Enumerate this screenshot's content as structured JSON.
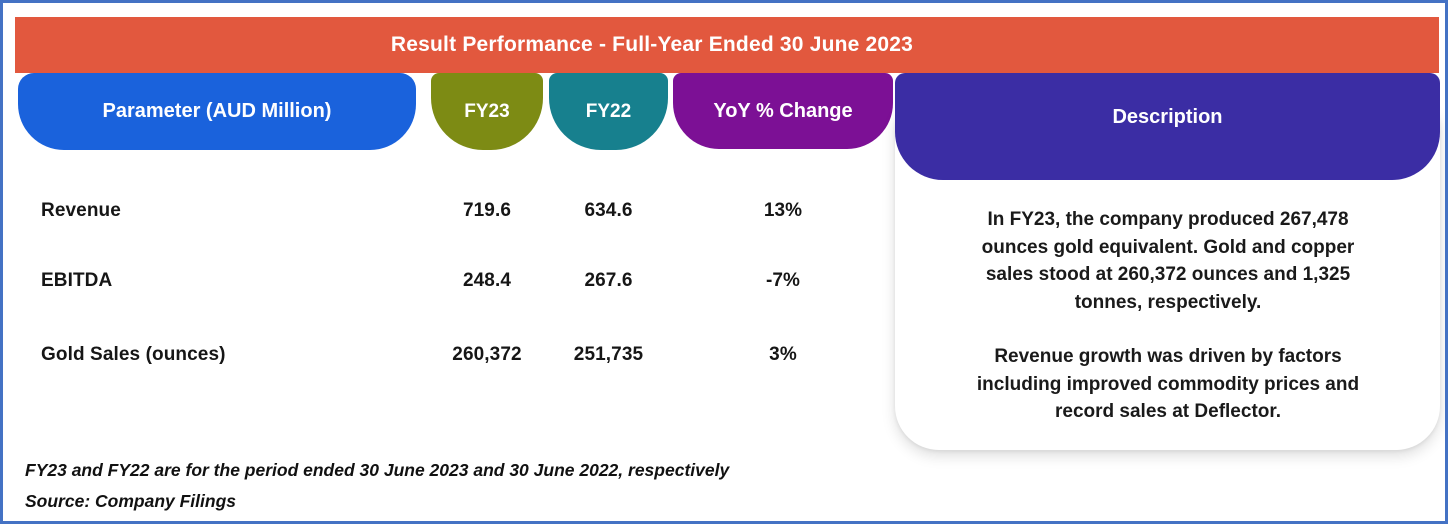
{
  "banner": {
    "title": "Result Performance - Full-Year Ended 30 June 2023"
  },
  "table": {
    "columns": [
      {
        "label": "Parameter (AUD Million)",
        "color": "#1A62DC"
      },
      {
        "label": "FY23",
        "color": "#7D8B14"
      },
      {
        "label": "FY22",
        "color": "#17808E"
      },
      {
        "label": "YoY % Change",
        "color": "#7C1095"
      }
    ],
    "rows": [
      {
        "parameter": "Revenue",
        "fy23": "719.6",
        "fy22": "634.6",
        "yoy": "13%"
      },
      {
        "parameter": "EBITDA",
        "fy23": "248.4",
        "fy22": "267.6",
        "yoy": "-7%"
      },
      {
        "parameter": "Gold Sales (ounces)",
        "fy23": "260,372",
        "fy22": "251,735",
        "yoy": "3%"
      }
    ]
  },
  "description": {
    "header": "Description",
    "header_color": "#3B2DA4",
    "paragraphs": [
      {
        "lines": [
          "In FY23, the company produced 267,478",
          "ounces gold equivalent. Gold and copper",
          "sales stood at 260,372 ounces and 1,325",
          "tonnes, respectively."
        ]
      },
      {
        "lines": [
          "Revenue growth was driven by factors",
          "including improved commodity prices and",
          "record sales at Deflector."
        ]
      }
    ]
  },
  "footnotes": [
    "FY23 and FY22 are for the period ended 30 June 2023 and 30 June 2022, respectively",
    "Source: Company Filings"
  ],
  "colors": {
    "banner": "#E2583E",
    "frame_border": "#4472C4",
    "text": "#1A1A1A"
  }
}
